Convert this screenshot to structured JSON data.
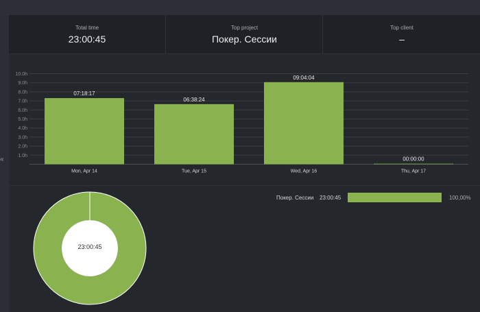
{
  "summary": {
    "total_time_label": "Total time",
    "total_time_value": "23:00:45",
    "top_project_label": "Top project",
    "top_project_value": "Покер. Сессии",
    "top_client_label": "Top client",
    "top_client_value": "–"
  },
  "colors": {
    "bar": "#8ab34f",
    "background": "#24272c",
    "grid": "#3a3e45"
  },
  "icons": {
    "collapse": "double-chevron-left-icon"
  },
  "collapse_glyph": "«",
  "chart_data": {
    "type": "bar",
    "categories": [
      "Mon, Apr 14",
      "Tue, Apr 15",
      "Wed, Apr 16",
      "Thu, Apr 17"
    ],
    "values": [
      7.3047,
      6.64,
      9.0678,
      0
    ],
    "data_labels": [
      "07:18:17",
      "06:38:24",
      "09:04:04",
      "00:00:00"
    ],
    "yticks": [
      "1.0h",
      "2.0h",
      "3.0h",
      "4.0h",
      "5.0h",
      "6.0h",
      "7.0h",
      "8.0h",
      "9.0h",
      "10.0h"
    ],
    "ylim": [
      0,
      10
    ],
    "grid": true,
    "title": "",
    "xlabel": "",
    "ylabel": ""
  },
  "donut": {
    "center_label": "23:00:45",
    "slices": [
      {
        "name": "Покер. Сессии",
        "value": 100
      }
    ]
  },
  "legend": {
    "items": [
      {
        "name": "Покер. Сессии",
        "time": "23:00:45",
        "percent": "100,00%",
        "fraction": 1.0
      }
    ]
  }
}
